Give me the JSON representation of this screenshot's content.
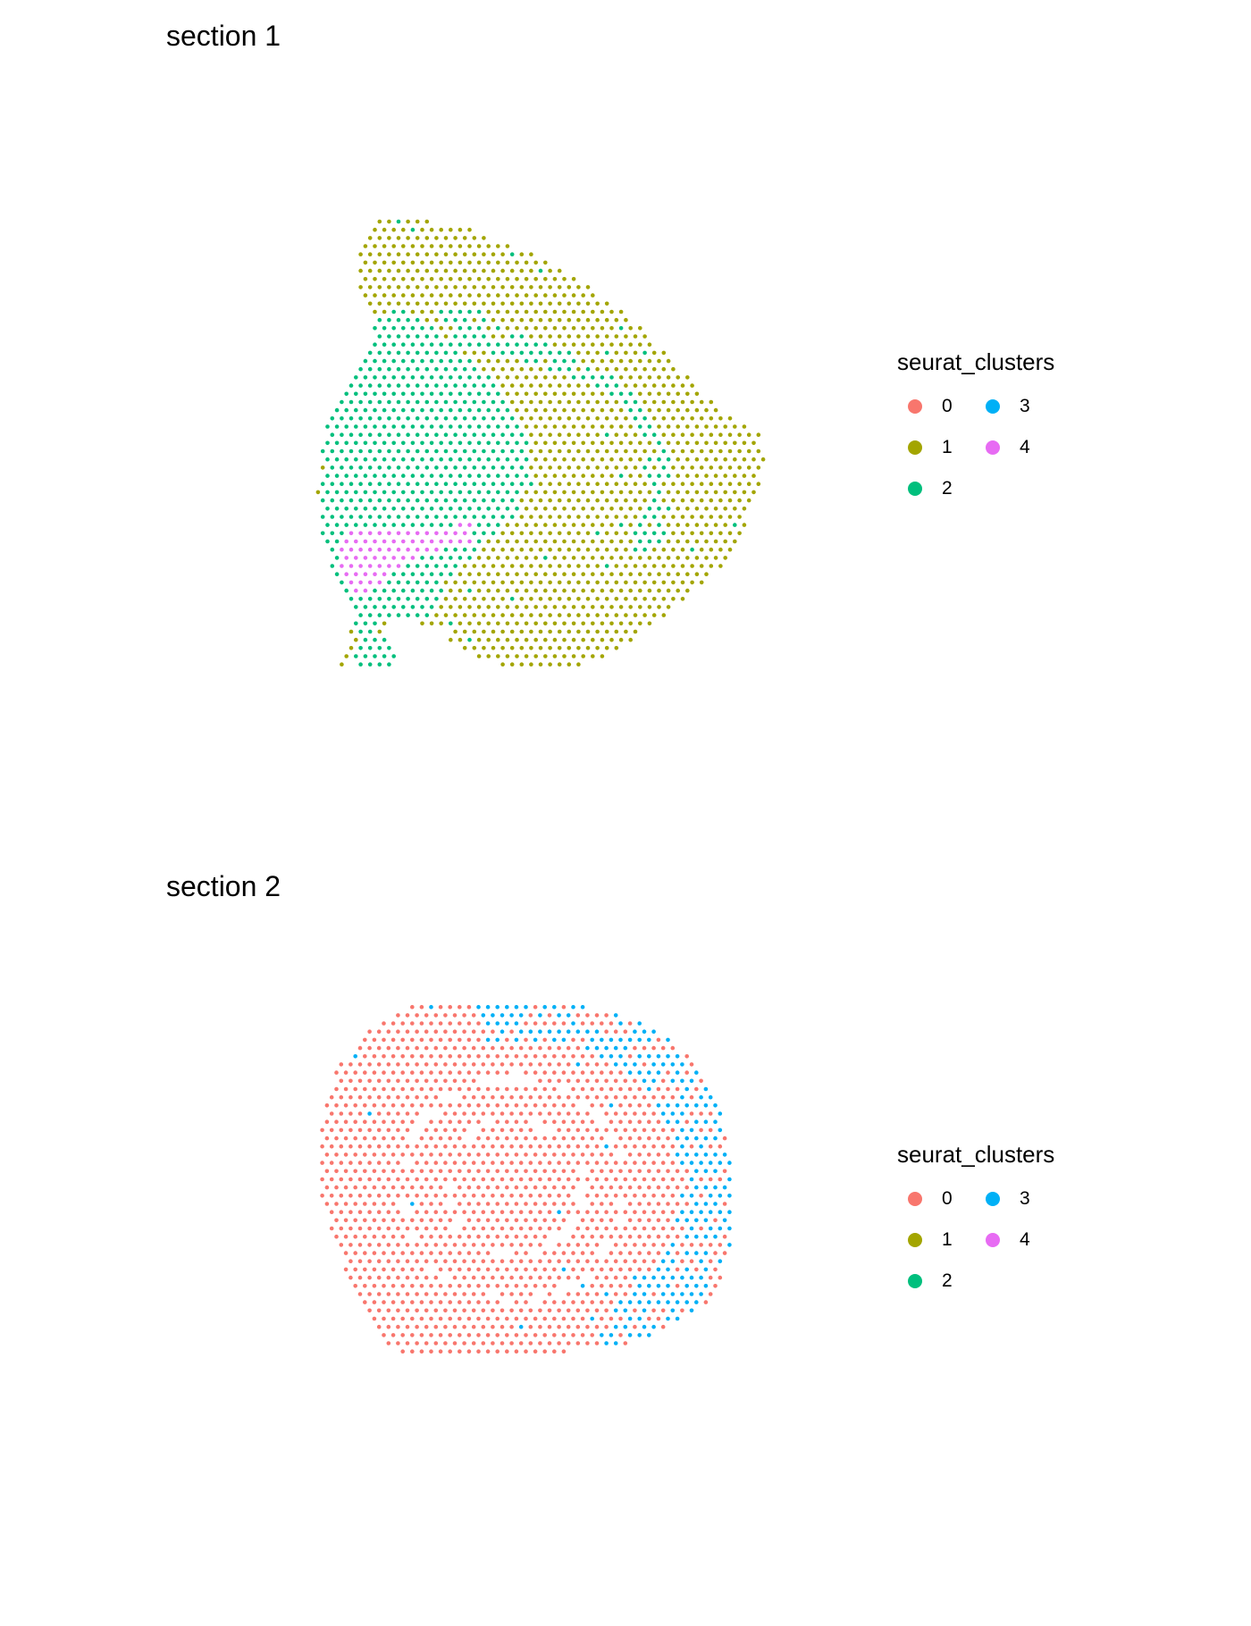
{
  "chart_data": [
    {
      "type": "scatter",
      "title": "section 1",
      "legend": {
        "title": "seurat_clusters",
        "placement": "right",
        "entries": [
          {
            "label": "0",
            "color": "#F8766D"
          },
          {
            "label": "1",
            "color": "#A3A500"
          },
          {
            "label": "2",
            "color": "#00BF7D"
          },
          {
            "label": "3",
            "color": "#00B0F6"
          },
          {
            "label": "4",
            "color": "#E76BF3"
          }
        ]
      },
      "axes": "none",
      "grid": false,
      "clusters_present": [
        "1",
        "2",
        "4"
      ]
    },
    {
      "type": "scatter",
      "title": "section 2",
      "legend": {
        "title": "seurat_clusters",
        "placement": "right",
        "entries": [
          {
            "label": "0",
            "color": "#F8766D"
          },
          {
            "label": "1",
            "color": "#A3A500"
          },
          {
            "label": "2",
            "color": "#00BF7D"
          },
          {
            "label": "3",
            "color": "#00B0F6"
          },
          {
            "label": "4",
            "color": "#E76BF3"
          }
        ]
      },
      "axes": "none",
      "grid": false,
      "clusters_present": [
        "0",
        "3"
      ]
    }
  ]
}
